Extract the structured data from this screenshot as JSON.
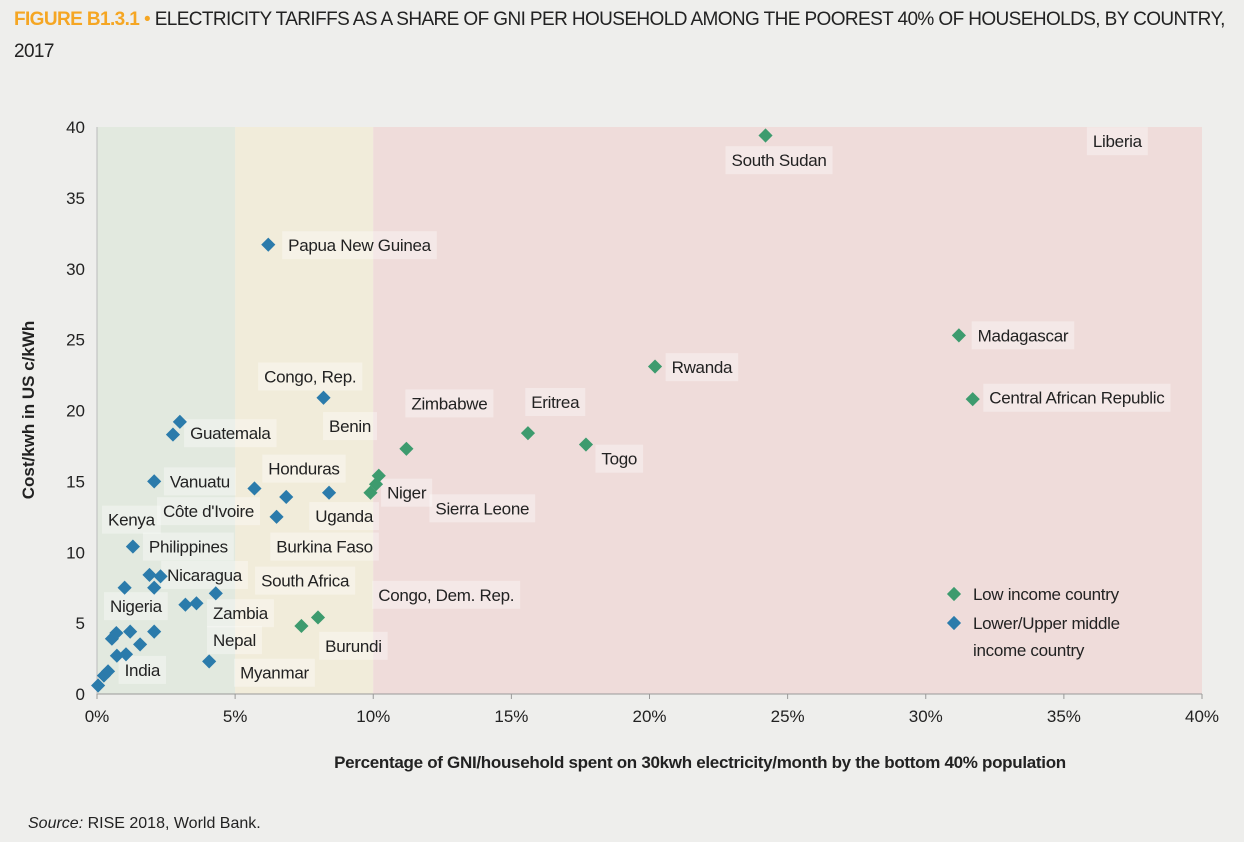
{
  "title": {
    "figure_label": "FIGURE B1.3.1",
    "bullet": "•",
    "text": "ELECTRICITY TARIFFS AS A SHARE OF GNI PER HOUSEHOLD AMONG THE POOREST 40% OF HOUSEHOLDS, BY COUNTRY, 2017"
  },
  "source": {
    "label": "Source:",
    "text": "RISE 2018, World Bank."
  },
  "colors": {
    "low_income": "#3d9b6e",
    "middle_income": "#2b7bab",
    "band_green": "#e2e9df",
    "band_yellow": "#f1ecda",
    "band_red": "#efdcda",
    "title_accent": "#f5a623"
  },
  "chart_data": {
    "type": "scatter",
    "title": "Electricity tariffs as a share of GNI per household among the poorest 40% of households, by country, 2017",
    "xlabel": "Percentage of GNI/household spent on 30kwh electricity/month by the bottom 40% population",
    "ylabel": "Cost/kwh in US c/kWh",
    "xlim": [
      0,
      40
    ],
    "ylim": [
      0,
      40
    ],
    "x_ticks": [
      0,
      5,
      10,
      15,
      20,
      25,
      30,
      35,
      40
    ],
    "x_tick_labels": [
      "0%",
      "5%",
      "10%",
      "15%",
      "20%",
      "25%",
      "30%",
      "35%",
      "40%"
    ],
    "y_ticks": [
      0,
      5,
      10,
      15,
      20,
      25,
      30,
      35,
      40
    ],
    "y_tick_labels": [
      "0",
      "5",
      "10",
      "15",
      "20",
      "25",
      "30",
      "35",
      "40"
    ],
    "grid": false,
    "bands": [
      {
        "from": 0,
        "to": 5,
        "color": "#e2e9df"
      },
      {
        "from": 5,
        "to": 10,
        "color": "#f1ecda"
      },
      {
        "from": 10,
        "to": 40,
        "color": "#efdcda"
      }
    ],
    "legend": {
      "placement": "bottom-right",
      "entries": [
        {
          "label": "Low income country",
          "series": "low"
        },
        {
          "label": "Lower/Upper middle income country",
          "series": "middle"
        }
      ]
    },
    "series": [
      {
        "name": "Low income country",
        "key": "low",
        "points": [
          [
            24.2,
            39.4
          ],
          [
            31.2,
            25.3
          ],
          [
            31.7,
            20.8
          ],
          [
            20.2,
            23.1
          ],
          [
            15.6,
            18.4
          ],
          [
            17.7,
            17.6
          ],
          [
            11.2,
            17.3
          ],
          [
            10.2,
            15.4
          ],
          [
            10.1,
            14.8
          ],
          [
            9.9,
            14.2
          ],
          [
            8.0,
            5.4
          ],
          [
            7.4,
            4.8
          ]
        ]
      },
      {
        "name": "Lower/Upper middle income country",
        "key": "middle",
        "points": [
          [
            6.2,
            31.7
          ],
          [
            8.2,
            20.9
          ],
          [
            3.0,
            19.2
          ],
          [
            2.75,
            18.3
          ],
          [
            2.07,
            15.0
          ],
          [
            5.7,
            14.5
          ],
          [
            6.85,
            13.9
          ],
          [
            8.4,
            14.2
          ],
          [
            6.5,
            12.5
          ],
          [
            1.3,
            10.4
          ],
          [
            1.9,
            8.4
          ],
          [
            2.3,
            8.3
          ],
          [
            1.0,
            7.5
          ],
          [
            2.07,
            7.5
          ],
          [
            4.3,
            7.1
          ],
          [
            3.2,
            6.3
          ],
          [
            3.6,
            6.4
          ],
          [
            2.07,
            4.4
          ],
          [
            1.2,
            4.4
          ],
          [
            1.56,
            3.5
          ],
          [
            0.54,
            3.9
          ],
          [
            0.7,
            4.3
          ],
          [
            0.72,
            2.7
          ],
          [
            1.05,
            2.8
          ],
          [
            0.25,
            1.3
          ],
          [
            0.4,
            1.6
          ],
          [
            0.04,
            0.6
          ],
          [
            4.06,
            2.3
          ]
        ]
      }
    ],
    "annotations": [
      {
        "text": "South Sudan",
        "at": [
          22.97,
          37.66
        ]
      },
      {
        "text": "Liberia",
        "at": [
          36.05,
          39.0
        ]
      },
      {
        "text": "Papua New Guinea",
        "at": [
          6.92,
          31.66
        ]
      },
      {
        "text": "Madagascar",
        "at": [
          31.88,
          25.3
        ]
      },
      {
        "text": "Rwanda",
        "at": [
          20.8,
          23.06
        ]
      },
      {
        "text": "Congo, Rep.",
        "at": [
          6.05,
          22.4
        ]
      },
      {
        "text": "Zimbabwe",
        "at": [
          11.38,
          20.5
        ]
      },
      {
        "text": "Eritrea",
        "at": [
          15.72,
          20.6
        ]
      },
      {
        "text": "Central African Republic",
        "at": [
          32.3,
          20.9
        ]
      },
      {
        "text": "Benin",
        "at": [
          8.4,
          18.9
        ]
      },
      {
        "text": "Guatemala",
        "at": [
          3.37,
          18.4
        ]
      },
      {
        "text": "Togo",
        "at": [
          18.26,
          16.6
        ]
      },
      {
        "text": "Honduras",
        "at": [
          6.2,
          15.9
        ]
      },
      {
        "text": "Vanuatu",
        "at": [
          2.64,
          15.0
        ]
      },
      {
        "text": "Niger",
        "at": [
          10.5,
          14.2
        ]
      },
      {
        "text": "Côte d'Ivoire",
        "at": [
          2.39,
          12.9
        ]
      },
      {
        "text": "Sierra Leone",
        "at": [
          12.25,
          13.1
        ]
      },
      {
        "text": "Kenya",
        "at": [
          0.4,
          12.3
        ]
      },
      {
        "text": "Uganda",
        "at": [
          7.9,
          12.55
        ]
      },
      {
        "text": "Philippines",
        "at": [
          1.88,
          10.4
        ]
      },
      {
        "text": "Burkina Faso",
        "at": [
          6.49,
          10.4
        ]
      },
      {
        "text": "Nicaragua",
        "at": [
          2.54,
          8.4
        ]
      },
      {
        "text": "South Africa",
        "at": [
          5.94,
          8.0
        ]
      },
      {
        "text": "Congo, Dem. Rep.",
        "at": [
          10.18,
          7.0
        ]
      },
      {
        "text": "Nigeria",
        "at": [
          0.47,
          6.2
        ]
      },
      {
        "text": "Zambia",
        "at": [
          4.2,
          5.7
        ]
      },
      {
        "text": "Nepal",
        "at": [
          4.2,
          3.8
        ]
      },
      {
        "text": "Burundi",
        "at": [
          8.26,
          3.4
        ]
      },
      {
        "text": "India",
        "at": [
          1.0,
          1.7
        ]
      },
      {
        "text": "Myanmar",
        "at": [
          5.18,
          1.5
        ]
      }
    ]
  }
}
